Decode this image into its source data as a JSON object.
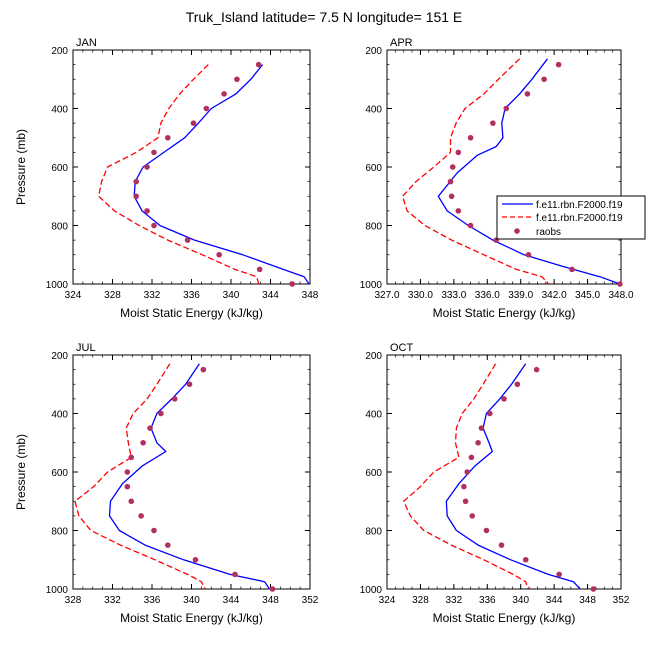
{
  "figure_title": "Truk_Island  latitude= 7.5 N longitude= 151 E",
  "legend": {
    "entries": [
      "f.e11.rbn.F2000.f19",
      "f.e11.rbn.F2000.f19",
      "raobs"
    ],
    "colors": [
      "#0000ff",
      "#ff0000",
      "#b03060"
    ],
    "styles": [
      "solid",
      "dashed",
      "dots"
    ]
  },
  "chart_data": [
    {
      "type": "line",
      "panel": "JAN",
      "title": "JAN",
      "xlabel": "Moist Static Energy (kJ/kg)",
      "ylabel": "Pressure (mb)",
      "xlim": [
        324,
        348
      ],
      "ylim": [
        1000,
        200
      ],
      "xticks": [
        "324",
        "328",
        "332",
        "336",
        "340",
        "344",
        "348"
      ],
      "yticks": [
        "200",
        "400",
        "600",
        "800",
        "1000"
      ],
      "series": [
        {
          "color": "#0000ff",
          "style": "solid",
          "x": [
            343.2,
            342.0,
            340.5,
            338.0,
            336.7,
            335.3,
            333.2,
            331.1,
            330.3,
            330.2,
            331.0,
            332.8,
            336.3,
            341.2,
            345.3,
            347.4,
            347.9
          ],
          "y": [
            250,
            300,
            350,
            400,
            450,
            500,
            550,
            600,
            650,
            700,
            750,
            800,
            850,
            900,
            950,
            975,
            1000
          ]
        },
        {
          "color": "#ff0000",
          "style": "dashed",
          "x": [
            337.7,
            336.2,
            334.8,
            333.7,
            332.9,
            332.6,
            330.4,
            327.5,
            326.9,
            326.6,
            328.2,
            330.7,
            333.6,
            337.1,
            340.4,
            342.6,
            342.8
          ],
          "y": [
            250,
            300,
            350,
            400,
            450,
            500,
            550,
            600,
            650,
            700,
            750,
            800,
            850,
            900,
            950,
            975,
            1000
          ]
        },
        {
          "color": "#b03060",
          "style": "dots",
          "x": [
            342.8,
            340.6,
            339.3,
            337.5,
            336.2,
            333.6,
            332.2,
            331.5,
            330.4,
            330.4,
            331.5,
            332.2,
            335.6,
            338.8,
            342.9,
            346.2
          ],
          "y": [
            250,
            300,
            350,
            400,
            450,
            500,
            550,
            600,
            650,
            700,
            750,
            800,
            850,
            900,
            950,
            1000
          ]
        }
      ]
    },
    {
      "type": "line",
      "panel": "APR",
      "title": "APR",
      "xlabel": "Moist Static Energy (kJ/kg)",
      "ylabel": "",
      "xlim": [
        327,
        348
      ],
      "ylim": [
        1000,
        200
      ],
      "xticks": [
        "327.0",
        "330.0",
        "333.0",
        "336.0",
        "339.0",
        "342.0",
        "345.0",
        "348.0"
      ],
      "yticks": [
        "200",
        "400",
        "600",
        "800",
        "1000"
      ],
      "series": [
        {
          "color": "#0000ff",
          "style": "solid",
          "x": [
            341.4,
            340.0,
            338.9,
            337.6,
            337.3,
            337.4,
            336.8,
            335.1,
            333.3,
            331.6,
            332.4,
            334.3,
            336.5,
            339.3,
            342.8,
            346.1,
            347.9
          ],
          "y": [
            230,
            300,
            350,
            400,
            450,
            500,
            530,
            560,
            620,
            700,
            750,
            800,
            850,
            900,
            940,
            975,
            1000
          ]
        },
        {
          "color": "#ff0000",
          "style": "dashed",
          "x": [
            338.9,
            337.0,
            335.7,
            334.0,
            333.2,
            332.7,
            332.7,
            331.2,
            329.6,
            328.4,
            328.8,
            330.4,
            332.8,
            335.7,
            338.6,
            340.9,
            341.5
          ],
          "y": [
            230,
            300,
            350,
            400,
            450,
            500,
            550,
            600,
            650,
            700,
            750,
            800,
            850,
            900,
            950,
            975,
            1000
          ]
        },
        {
          "color": "#b03060",
          "style": "dots",
          "x": [
            342.4,
            341.1,
            339.6,
            337.7,
            336.5,
            334.5,
            333.4,
            332.9,
            332.7,
            332.8,
            333.4,
            334.5,
            336.8,
            339.7,
            343.6,
            347.9
          ],
          "y": [
            250,
            300,
            350,
            400,
            450,
            500,
            550,
            600,
            650,
            700,
            750,
            800,
            850,
            900,
            950,
            1000
          ]
        }
      ]
    },
    {
      "type": "line",
      "panel": "JUL",
      "title": "JUL",
      "xlabel": "Moist Static Energy (kJ/kg)",
      "ylabel": "Pressure (mb)",
      "xlim": [
        328,
        352
      ],
      "ylim": [
        1000,
        200
      ],
      "xticks": [
        "328",
        "332",
        "336",
        "340",
        "344",
        "348",
        "352"
      ],
      "yticks": [
        "200",
        "400",
        "600",
        "800",
        "1000"
      ],
      "series": [
        {
          "color": "#0000ff",
          "style": "solid",
          "x": [
            340.8,
            339.4,
            338.0,
            336.5,
            335.9,
            336.5,
            337.4,
            335.0,
            333.0,
            331.8,
            331.7,
            332.7,
            335.3,
            339.2,
            343.9,
            347.4,
            347.9
          ],
          "y": [
            230,
            300,
            350,
            400,
            450,
            500,
            530,
            580,
            640,
            700,
            750,
            800,
            850,
            900,
            950,
            975,
            1000
          ]
        },
        {
          "color": "#ff0000",
          "style": "dashed",
          "x": [
            337.8,
            336.5,
            335.5,
            334.1,
            333.4,
            333.6,
            333.9,
            331.5,
            330.1,
            328.2,
            328.6,
            329.8,
            332.8,
            336.3,
            339.6,
            341.0,
            341.4
          ],
          "y": [
            230,
            300,
            350,
            400,
            450,
            500,
            550,
            600,
            650,
            700,
            750,
            800,
            850,
            900,
            950,
            975,
            1000
          ]
        },
        {
          "color": "#b03060",
          "style": "dots",
          "x": [
            341.2,
            339.8,
            338.3,
            336.9,
            335.8,
            335.1,
            333.9,
            333.5,
            333.5,
            333.9,
            334.9,
            336.2,
            337.6,
            340.4,
            344.4,
            348.2
          ],
          "y": [
            250,
            300,
            350,
            400,
            450,
            500,
            550,
            600,
            650,
            700,
            750,
            800,
            850,
            900,
            950,
            1000
          ]
        }
      ]
    },
    {
      "type": "line",
      "panel": "OCT",
      "title": "OCT",
      "xlabel": "Moist Static Energy (kJ/kg)",
      "ylabel": "",
      "xlim": [
        324,
        352
      ],
      "ylim": [
        1000,
        200
      ],
      "xticks": [
        "324",
        "328",
        "332",
        "336",
        "340",
        "344",
        "348",
        "352"
      ],
      "yticks": [
        "200",
        "400",
        "600",
        "800",
        "1000"
      ],
      "series": [
        {
          "color": "#0000ff",
          "style": "solid",
          "x": [
            340.6,
            338.9,
            337.5,
            335.9,
            335.5,
            336.2,
            336.6,
            334.5,
            332.6,
            331.1,
            331.2,
            332.3,
            334.9,
            338.8,
            343.3,
            346.3,
            347.1
          ],
          "y": [
            230,
            300,
            350,
            400,
            450,
            500,
            530,
            580,
            640,
            700,
            750,
            800,
            850,
            900,
            950,
            975,
            1000
          ]
        },
        {
          "color": "#ff0000",
          "style": "dashed",
          "x": [
            337.0,
            335.5,
            334.4,
            333.0,
            332.3,
            332.2,
            332.6,
            329.6,
            328.0,
            326.0,
            326.8,
            328.4,
            331.7,
            335.6,
            339.1,
            340.6,
            340.9
          ],
          "y": [
            230,
            300,
            350,
            400,
            450,
            500,
            550,
            600,
            650,
            700,
            750,
            800,
            850,
            900,
            950,
            975,
            1000
          ]
        },
        {
          "color": "#b03060",
          "style": "dots",
          "x": [
            341.9,
            339.6,
            338.0,
            336.3,
            335.3,
            334.9,
            334.1,
            333.6,
            333.2,
            333.4,
            334.2,
            335.9,
            337.7,
            340.6,
            344.6,
            348.7
          ],
          "y": [
            250,
            300,
            350,
            400,
            450,
            500,
            550,
            600,
            650,
            700,
            750,
            800,
            850,
            900,
            950,
            1000
          ]
        }
      ]
    }
  ]
}
